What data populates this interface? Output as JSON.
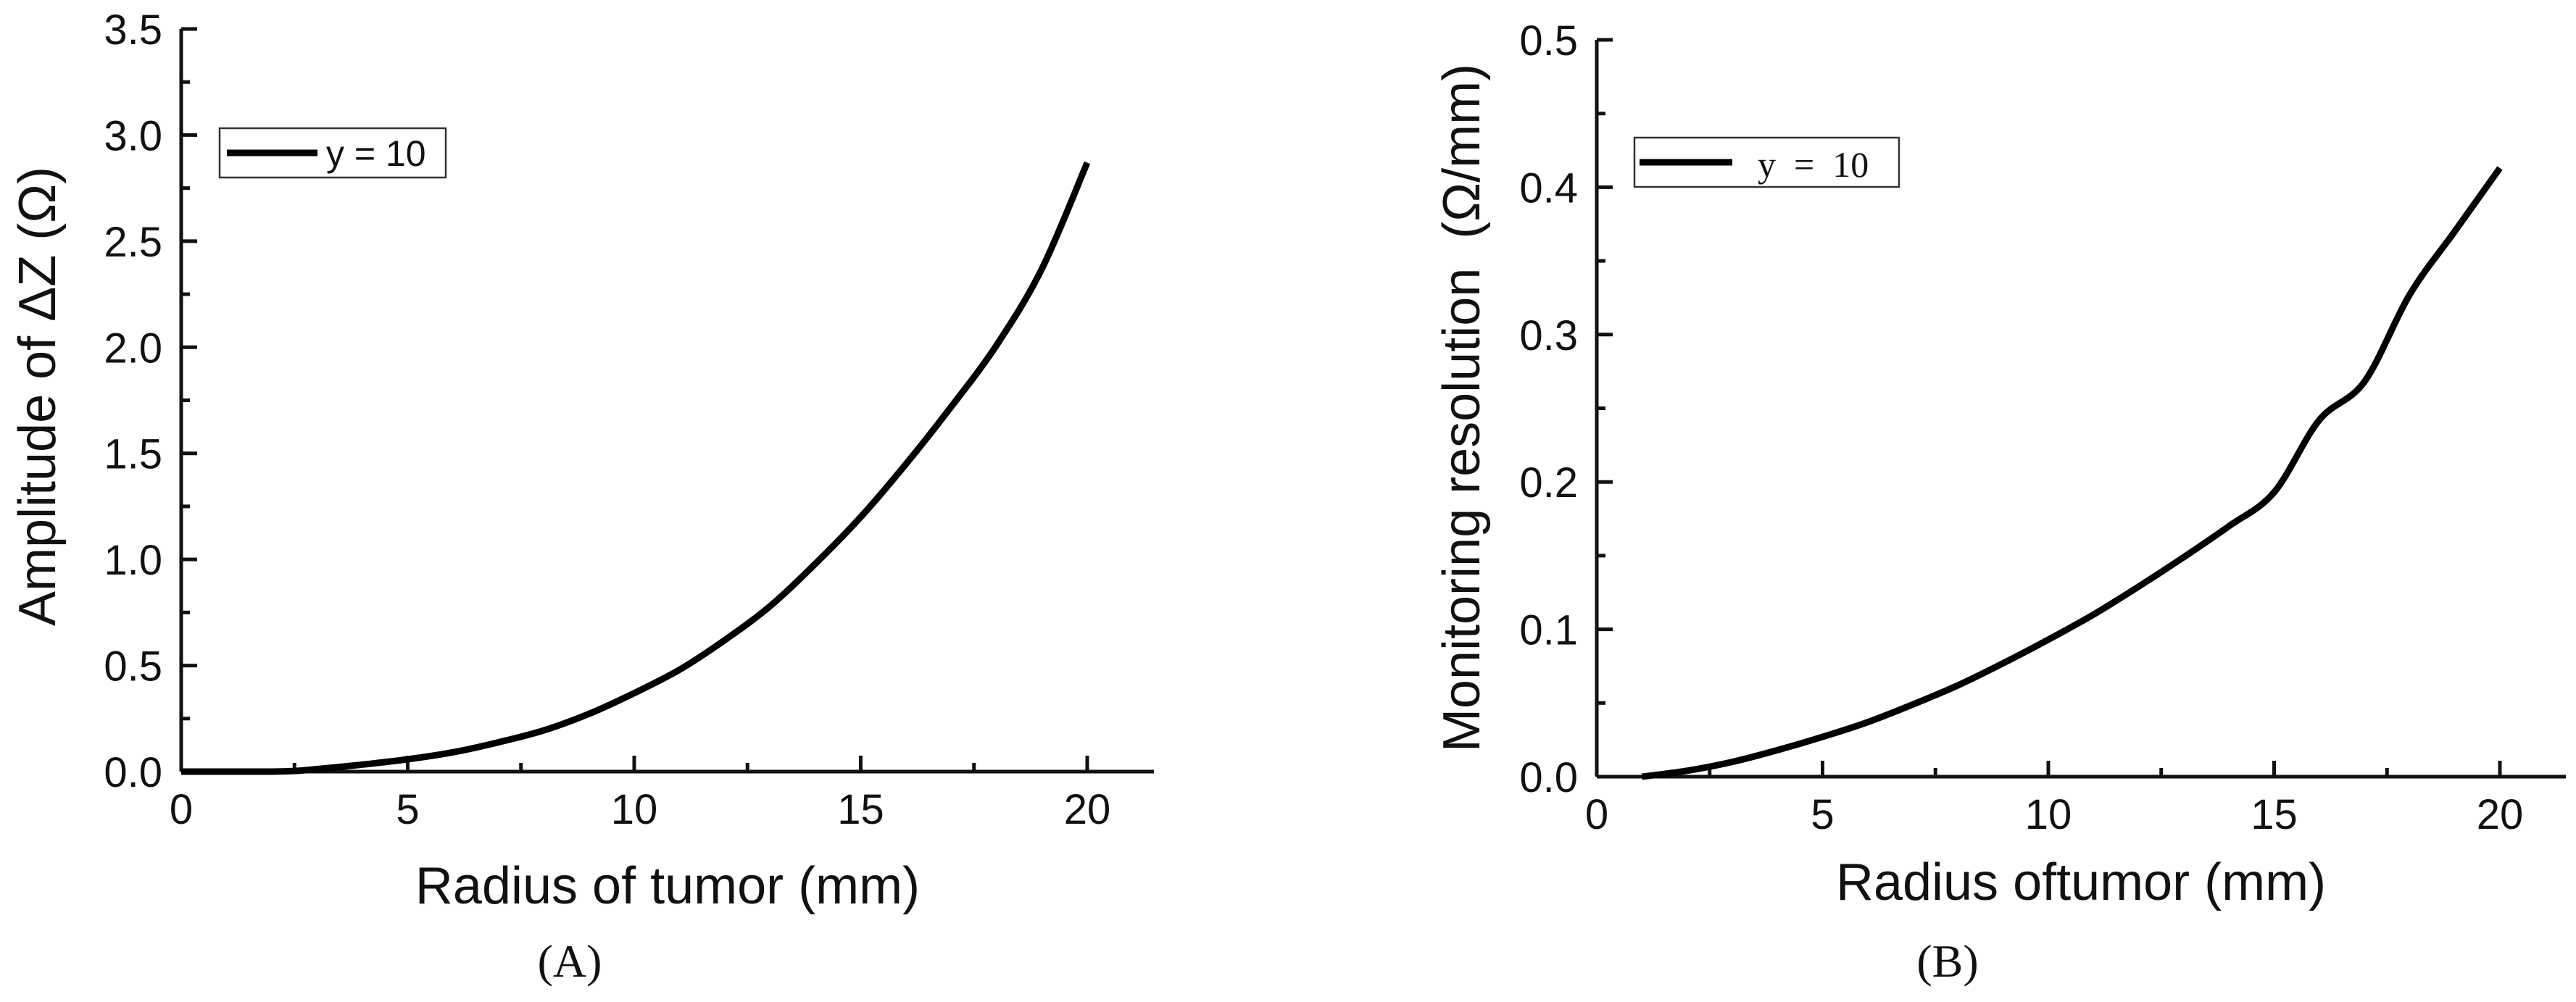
{
  "chart_data": [
    {
      "type": "line",
      "panel_label": "(A)",
      "xlabel": "Radius of tumor (mm)",
      "ylabel": "Amplitude of ΔZ (Ω)",
      "xlim": [
        0,
        21.5
      ],
      "ylim": [
        0,
        3.5
      ],
      "x_ticks": [
        "0",
        "5",
        "10",
        "15",
        "20"
      ],
      "y_ticks": [
        "0.0",
        "0.5",
        "1.0",
        "1.5",
        "2.0",
        "2.5",
        "3.0",
        "3.5"
      ],
      "legend_position": "top-left",
      "series": [
        {
          "name": "y = 10",
          "x": [
            0,
            1,
            2,
            2.5,
            3,
            4,
            5,
            6,
            7,
            8,
            9,
            10,
            11,
            12,
            13,
            14,
            15,
            16,
            17,
            18,
            19,
            20
          ],
          "y": [
            0,
            0,
            0,
            0.003,
            0.012,
            0.033,
            0.058,
            0.091,
            0.138,
            0.194,
            0.272,
            0.37,
            0.48,
            0.62,
            0.78,
            0.98,
            1.2,
            1.45,
            1.72,
            2.01,
            2.37,
            2.87
          ]
        }
      ]
    },
    {
      "type": "line",
      "panel_label": "(B)",
      "xlabel": "Radius oftumor (mm)",
      "ylabel": "Monitoring resolution  (Ω/mm)",
      "xlim": [
        0,
        21.5
      ],
      "ylim": [
        0,
        0.5
      ],
      "x_ticks": [
        "0",
        "5",
        "10",
        "15",
        "20"
      ],
      "y_ticks": [
        "0.0",
        "0.1",
        "0.2",
        "0.3",
        "0.4",
        "0.5"
      ],
      "legend_position": "top-left",
      "series": [
        {
          "name": "y  =  10",
          "x": [
            1,
            2,
            3,
            4,
            5,
            6,
            7,
            8,
            9,
            10,
            11,
            12,
            13,
            14,
            15,
            16,
            17,
            18,
            19,
            20
          ],
          "y": [
            0,
            0.004,
            0.01,
            0.018,
            0.027,
            0.037,
            0.049,
            0.062,
            0.077,
            0.093,
            0.11,
            0.129,
            0.149,
            0.17,
            0.193,
            0.242,
            0.268,
            0.327,
            0.37,
            0.413
          ]
        }
      ]
    }
  ]
}
